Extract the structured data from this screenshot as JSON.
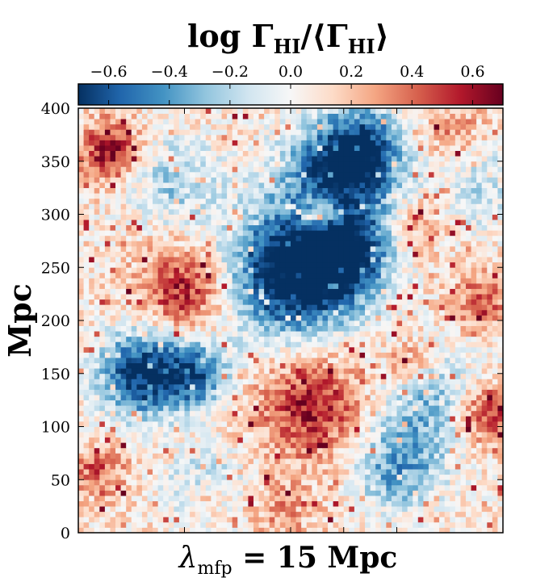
{
  "chart_data": {
    "type": "heatmap",
    "colorbar": {
      "title_main": "log Γ",
      "title_sub": "HI",
      "title_rest": "/⟨Γ",
      "title_sub2": "HI",
      "title_end": "⟩",
      "vmin": -0.7,
      "vmax": 0.7,
      "ticks": [
        -0.6,
        -0.4,
        -0.2,
        0.0,
        0.2,
        0.4,
        0.6
      ],
      "tick_labels": [
        "−0.6",
        "−0.4",
        "−0.2",
        "0.0",
        "0.2",
        "0.4",
        "0.6"
      ],
      "colormap_stops": [
        "#053061",
        "#2166ac",
        "#4393c3",
        "#92c5de",
        "#d1e5f0",
        "#f7f7f7",
        "#fddbc7",
        "#f4a582",
        "#d6604d",
        "#b2182b",
        "#67001f"
      ]
    },
    "ylabel": "Mpc",
    "ylim": [
      0,
      400
    ],
    "yticks": [
      0,
      50,
      100,
      150,
      200,
      250,
      300,
      350,
      400
    ],
    "ytick_labels": [
      "0",
      "50",
      "100",
      "150",
      "200",
      "250",
      "300",
      "350",
      "400"
    ],
    "xlim": [
      0,
      400
    ],
    "xticks": [
      0,
      100,
      200,
      250,
      300,
      400
    ],
    "xlabel_main": "λ",
    "xlabel_sub": "mfp",
    "xlabel_rest": " = 15 Mpc",
    "grid_cells": 80,
    "features": [
      {
        "x": 200,
        "y": 245,
        "sigma": 42,
        "value": -0.95
      },
      {
        "x": 250,
        "y": 265,
        "sigma": 30,
        "value": -0.75
      },
      {
        "x": 240,
        "y": 340,
        "sigma": 35,
        "value": -0.55
      },
      {
        "x": 270,
        "y": 360,
        "sigma": 30,
        "value": -0.6
      },
      {
        "x": 60,
        "y": 150,
        "sigma": 28,
        "value": -0.8
      },
      {
        "x": 110,
        "y": 150,
        "sigma": 22,
        "value": -0.6
      },
      {
        "x": 330,
        "y": 120,
        "sigma": 35,
        "value": -0.35
      },
      {
        "x": 300,
        "y": 60,
        "sigma": 28,
        "value": -0.45
      },
      {
        "x": 120,
        "y": 40,
        "sigma": 25,
        "value": -0.35
      },
      {
        "x": 90,
        "y": 330,
        "sigma": 30,
        "value": -0.3
      },
      {
        "x": 380,
        "y": 330,
        "sigma": 30,
        "value": -0.25
      },
      {
        "x": 30,
        "y": 360,
        "sigma": 20,
        "value": 0.55
      },
      {
        "x": 100,
        "y": 230,
        "sigma": 30,
        "value": 0.5
      },
      {
        "x": 220,
        "y": 120,
        "sigma": 35,
        "value": 0.5
      },
      {
        "x": 230,
        "y": 300,
        "sigma": 15,
        "value": 0.55
      },
      {
        "x": 385,
        "y": 110,
        "sigma": 20,
        "value": 0.5
      },
      {
        "x": 380,
        "y": 220,
        "sigma": 20,
        "value": 0.35
      },
      {
        "x": 120,
        "y": 30,
        "sigma": 15,
        "value": 0.35
      },
      {
        "x": 20,
        "y": 60,
        "sigma": 18,
        "value": 0.35
      },
      {
        "x": 350,
        "y": 380,
        "sigma": 25,
        "value": 0.25
      },
      {
        "x": 320,
        "y": 290,
        "sigma": 18,
        "value": 0.25
      },
      {
        "x": 190,
        "y": 20,
        "sigma": 25,
        "value": 0.2
      },
      {
        "x": 310,
        "y": 160,
        "sigma": 15,
        "value": 0.3
      }
    ]
  }
}
